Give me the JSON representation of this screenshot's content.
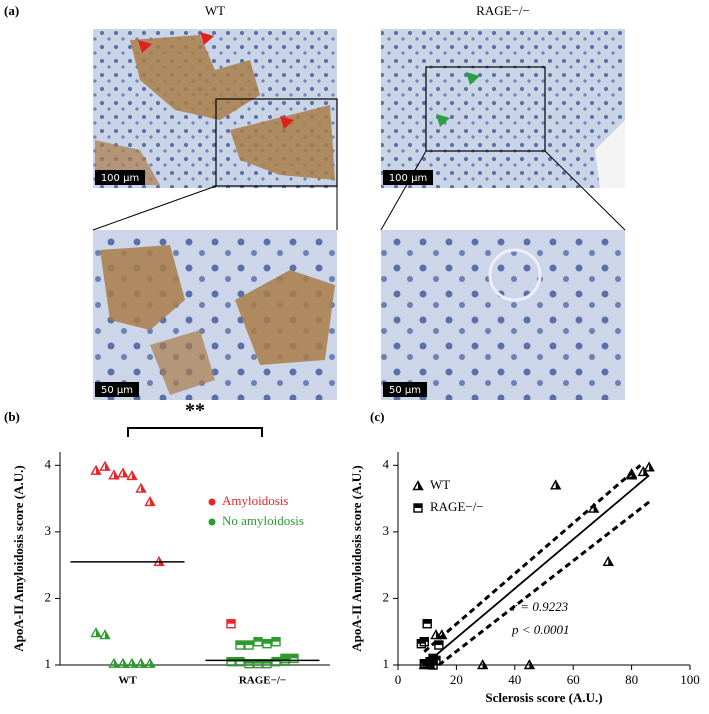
{
  "panel_a": {
    "label": "(a)",
    "columns": [
      "WT",
      "RAGE−/−"
    ],
    "scale_bars": [
      "100 µm",
      "100 µm",
      "50 µm",
      "50 µm"
    ]
  },
  "chart_data": [
    {
      "type": "dot",
      "label": "(b)",
      "y_label": "ApoA-II Amyloidosis score (A.U.)",
      "annotation": "**",
      "categories": [
        "WT",
        "RAGE−/−"
      ],
      "ylim": [
        1,
        4.2
      ],
      "yticks": [
        1,
        2,
        3,
        4
      ],
      "legend": "upper right",
      "medians": [
        2.55,
        1.07
      ],
      "series": [
        {
          "name": "Amyloidosis",
          "color": "#e8262a",
          "x": [
            "WT",
            "WT",
            "WT",
            "WT",
            "WT",
            "WT",
            "WT",
            "WT",
            "RAGE−/−"
          ],
          "values": [
            3.92,
            3.98,
            3.85,
            3.88,
            3.84,
            3.65,
            3.45,
            2.55,
            1.62
          ]
        },
        {
          "name": "No amyloidosis",
          "color": "#2e9a2e",
          "x": [
            "WT",
            "WT",
            "WT",
            "WT",
            "WT",
            "WT",
            "WT",
            "RAGE−/−",
            "RAGE−/−",
            "RAGE−/−",
            "RAGE−/−",
            "RAGE−/−",
            "RAGE−/−",
            "RAGE−/−",
            "RAGE−/−",
            "RAGE−/−",
            "RAGE−/−",
            "RAGE−/−",
            "RAGE−/−",
            "RAGE−/−",
            "RAGE−/−"
          ],
          "values": [
            1.48,
            1.45,
            1.02,
            1.02,
            1.02,
            1.02,
            1.02,
            1.3,
            1.3,
            1.35,
            1.32,
            1.35,
            1.1,
            1.1,
            1.05,
            1.05,
            1.02,
            1.02,
            1.02,
            1.05,
            1.07
          ]
        }
      ]
    },
    {
      "type": "scatter",
      "label": "(c)",
      "x_label": "Sclerosis score (A.U.)",
      "y_label": "ApoA-II Amyloidosis score (A.U.)",
      "annotations": [
        "r = 0.9223",
        "p < 0.0001"
      ],
      "xlim": [
        0,
        100
      ],
      "xticks": [
        0,
        20,
        40,
        60,
        80,
        100
      ],
      "ylim": [
        1,
        4.2
      ],
      "yticks": [
        1,
        2,
        3,
        4
      ],
      "legend": "upper left",
      "series": [
        {
          "name": "WT",
          "color": "#000000",
          "x": [
            86,
            84,
            80,
            80,
            67,
            54,
            72,
            15,
            13,
            29,
            45,
            9,
            11
          ],
          "values": [
            3.97,
            3.9,
            3.87,
            3.85,
            3.35,
            3.7,
            2.55,
            1.45,
            1.45,
            1.0,
            1.0,
            1.0,
            1.0
          ]
        },
        {
          "name": "RAGE−/−",
          "color": "#000000",
          "x": [
            10,
            9,
            8,
            14,
            12,
            11,
            9,
            10,
            12,
            13
          ],
          "values": [
            1.62,
            1.35,
            1.32,
            1.3,
            1.1,
            1.05,
            1.02,
            1.02,
            1.0,
            1.07
          ]
        }
      ],
      "fit": {
        "x": [
          9,
          86
        ],
        "y": [
          1.0,
          3.85
        ]
      },
      "ci_upper": {
        "x": [
          9,
          83
        ],
        "y": [
          1.2,
          4.0
        ]
      },
      "ci_lower": {
        "x": [
          14,
          86
        ],
        "y": [
          1.0,
          3.45
        ]
      }
    }
  ]
}
